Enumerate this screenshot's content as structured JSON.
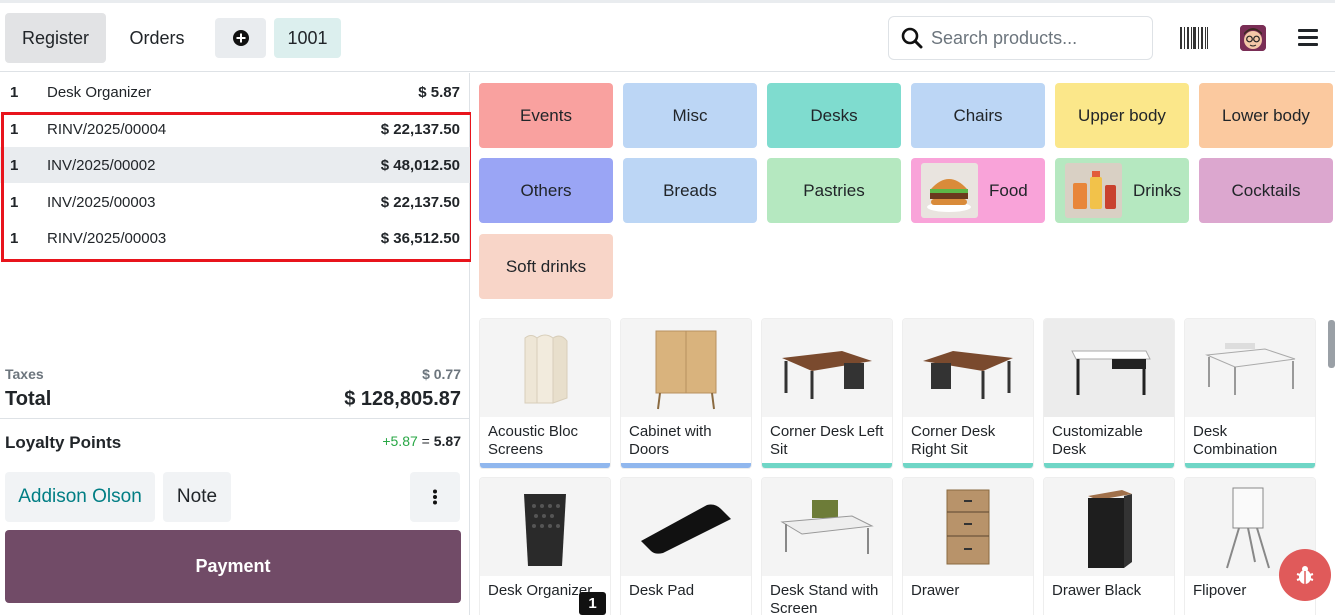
{
  "topbar": {
    "register_label": "Register",
    "orders_label": "Orders",
    "order_number": "1001",
    "search_placeholder": "Search products..."
  },
  "order_lines": [
    {
      "qty": "1",
      "name": "Desk Organizer",
      "price": "$ 5.87"
    },
    {
      "qty": "1",
      "name": "RINV/2025/00004",
      "price": "$ 22,137.50"
    },
    {
      "qty": "1",
      "name": "INV/2025/00002",
      "price": "$ 48,012.50"
    },
    {
      "qty": "1",
      "name": "INV/2025/00003",
      "price": "$ 22,137.50"
    },
    {
      "qty": "1",
      "name": "RINV/2025/00003",
      "price": "$ 36,512.50"
    }
  ],
  "summary": {
    "taxes_label": "Taxes",
    "taxes_value": "$ 0.77",
    "total_label": "Total",
    "total_value": "$ 128,805.87",
    "loyalty_label": "Loyalty Points",
    "loyalty_gain": "+5.87",
    "loyalty_eq": "=",
    "loyalty_total": "5.87"
  },
  "actions": {
    "customer": "Addison Olson",
    "note": "Note",
    "payment": "Payment"
  },
  "categories": [
    {
      "label": "Events",
      "color": "#f9a19f"
    },
    {
      "label": "Misc",
      "color": "#bcd6f5"
    },
    {
      "label": "Desks",
      "color": "#7fdccf"
    },
    {
      "label": "Chairs",
      "color": "#bcd6f5"
    },
    {
      "label": "Upper body",
      "color": "#fbe78a"
    },
    {
      "label": "Lower body",
      "color": "#fbc99f"
    },
    {
      "label": "Others",
      "color": "#9aa5f5"
    },
    {
      "label": "Breads",
      "color": "#bcd6f5"
    },
    {
      "label": "Pastries",
      "color": "#b5e8c0"
    },
    {
      "label": "Food",
      "color": "#f9a3d9"
    },
    {
      "label": "Drinks",
      "color": "#b5e8c0"
    },
    {
      "label": "Cocktails",
      "color": "#dca7cf"
    },
    {
      "label": "Soft drinks",
      "color": "#f8d5c8"
    }
  ],
  "products": [
    {
      "name": "Acoustic Bloc Screens",
      "bar_color": "#90b7ee"
    },
    {
      "name": "Cabinet with Doors",
      "bar_color": "#90b7ee"
    },
    {
      "name": "Corner Desk Left Sit",
      "bar_color": "#6fd6c6"
    },
    {
      "name": "Corner Desk Right Sit",
      "bar_color": "#6fd6c6"
    },
    {
      "name": "Customizable Desk",
      "bar_color": "#6fd6c6"
    },
    {
      "name": "Desk Combination",
      "bar_color": "#6fd6c6"
    },
    {
      "name": "Desk Organizer",
      "bar_color": "#ffffff"
    },
    {
      "name": "Desk Pad",
      "bar_color": "#ffffff"
    },
    {
      "name": "Desk Stand with Screen",
      "bar_color": "#ffffff"
    },
    {
      "name": "Drawer",
      "bar_color": "#ffffff"
    },
    {
      "name": "Drawer Black",
      "bar_color": "#ffffff"
    },
    {
      "name": "Flipover",
      "bar_color": "#ffffff"
    }
  ],
  "badge": "1"
}
